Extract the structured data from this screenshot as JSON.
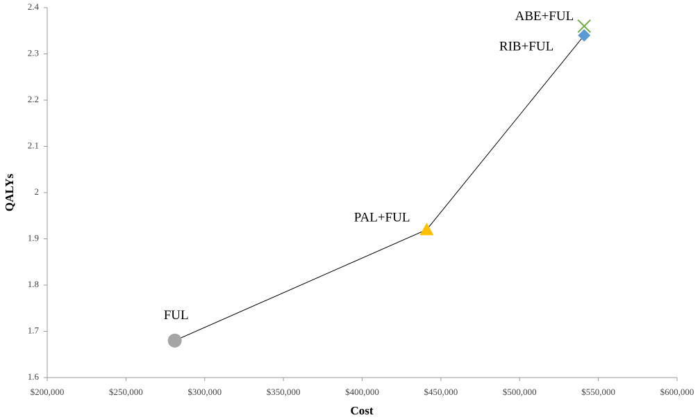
{
  "chart_data": {
    "type": "scatter",
    "x_label": "Cost",
    "y_label": "QALYs",
    "points": [
      {
        "label": "FUL",
        "x": 281000,
        "y": 1.68,
        "color": "#a5a5a5",
        "marker": "circle"
      },
      {
        "label": "PAL+FUL",
        "x": 441000,
        "y": 1.92,
        "color": "#ffc000",
        "marker": "triangle"
      },
      {
        "label": "RIB+FUL",
        "x": 541000,
        "y": 2.34,
        "color": "#5b9bd5",
        "marker": "diamond"
      },
      {
        "label": "ABE+FUL",
        "x": 541000,
        "y": 2.36,
        "color": "#70ad47",
        "marker": "x"
      }
    ],
    "line_points": [
      0,
      1,
      2
    ],
    "line_color": "#000000",
    "xlim": [
      200000,
      600000
    ],
    "xticks": [
      {
        "value": 200000,
        "label": "$200,000"
      },
      {
        "value": 250000,
        "label": "$250,000"
      },
      {
        "value": 300000,
        "label": "$300,000"
      },
      {
        "value": 350000,
        "label": "$350,000"
      },
      {
        "value": 400000,
        "label": "$400,000"
      },
      {
        "value": 450000,
        "label": "$450,000"
      },
      {
        "value": 500000,
        "label": "$500,000"
      },
      {
        "value": 550000,
        "label": "$550,000"
      },
      {
        "value": 600000,
        "label": "$600,000"
      }
    ],
    "ylim": [
      1.6,
      2.4
    ],
    "yticks": [
      1.6,
      1.7,
      1.8,
      1.9,
      2,
      2.1,
      2.2,
      2.3,
      2.4
    ],
    "grid": false
  }
}
